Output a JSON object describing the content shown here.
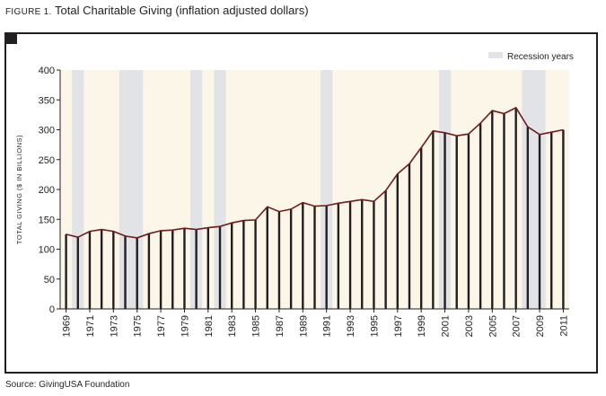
{
  "figure": {
    "label": "FIGURE 1.",
    "title": "Total Charitable Giving (inflation adjusted dollars)",
    "source": "Source: GivingUSA Foundation"
  },
  "colors": {
    "background": "#fbf6e8",
    "recession": "#e2e3e6",
    "bar": "#231f20",
    "line": "#6e1c1c",
    "frame": "#231f20"
  },
  "chart_data": {
    "type": "bar",
    "ylabel": "TOTAL GIVING ($ IN BILLIONS)",
    "xlabel": "",
    "ylim": [
      0,
      400
    ],
    "yticks": [
      0,
      50,
      100,
      150,
      200,
      250,
      300,
      350,
      400
    ],
    "grid": false,
    "legend": {
      "position": "top-right",
      "entries": [
        "Recession years"
      ]
    },
    "overlay_line": true,
    "x_tick_labels": [
      "1969",
      "1971",
      "1973",
      "1975",
      "1977",
      "1979",
      "1981",
      "1983",
      "1985",
      "1987",
      "1989",
      "1991",
      "1993",
      "1995",
      "1997",
      "1999",
      "2001",
      "2003",
      "2005",
      "2007",
      "2009",
      "2011"
    ],
    "recession_periods": [
      [
        1970,
        1970
      ],
      [
        1974,
        1975
      ],
      [
        1980,
        1980
      ],
      [
        1982,
        1982
      ],
      [
        1991,
        1991
      ],
      [
        2001,
        2001
      ],
      [
        2008,
        2009
      ]
    ],
    "categories": [
      "1969",
      "1970",
      "1971",
      "1972",
      "1973",
      "1974",
      "1975",
      "1976",
      "1977",
      "1978",
      "1979",
      "1980",
      "1981",
      "1982",
      "1983",
      "1984",
      "1985",
      "1986",
      "1987",
      "1988",
      "1989",
      "1990",
      "1991",
      "1992",
      "1993",
      "1994",
      "1995",
      "1996",
      "1997",
      "1998",
      "1999",
      "2000",
      "2001",
      "2002",
      "2003",
      "2004",
      "2005",
      "2006",
      "2007",
      "2008",
      "2009",
      "2010",
      "2011"
    ],
    "values": [
      125,
      120,
      130,
      133,
      130,
      122,
      119,
      126,
      131,
      132,
      135,
      133,
      136,
      138,
      144,
      148,
      149,
      171,
      163,
      167,
      178,
      172,
      173,
      177,
      180,
      183,
      180,
      198,
      226,
      243,
      270,
      298,
      295,
      290,
      293,
      311,
      332,
      327,
      337,
      305,
      292,
      296,
      300
    ]
  }
}
